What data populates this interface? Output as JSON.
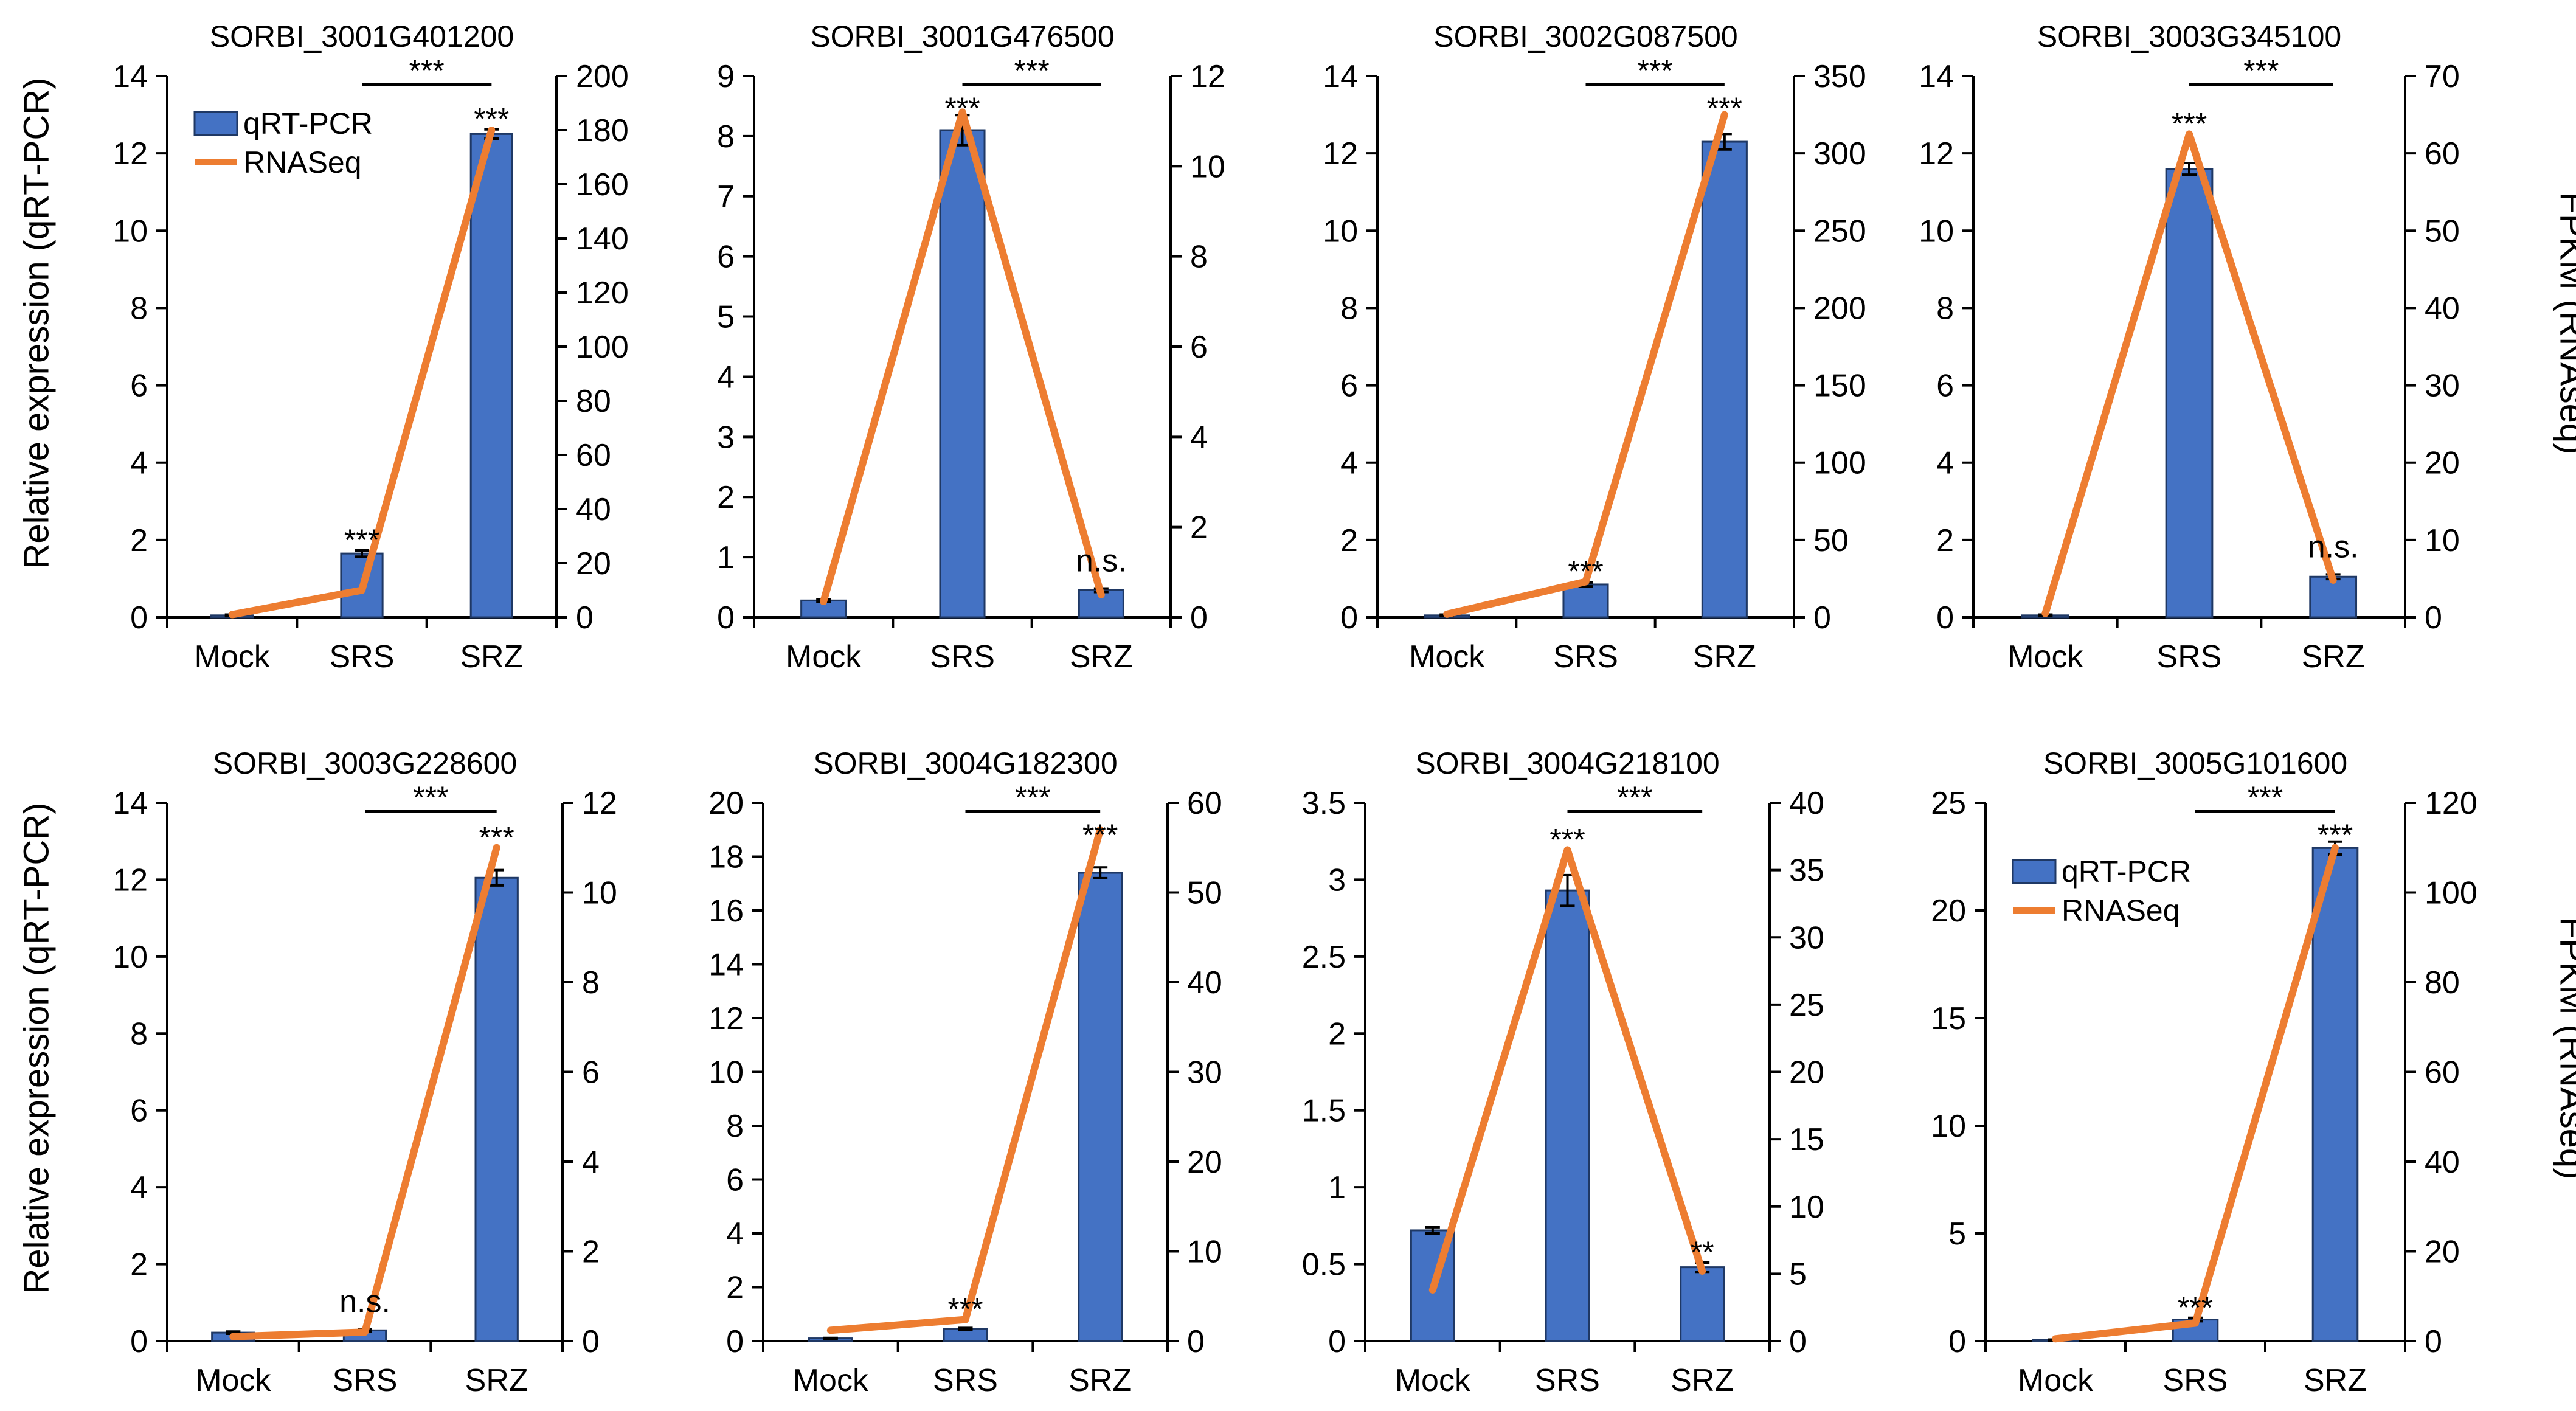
{
  "figure": {
    "left_axis_title": "Relative expression (qRT-PCR)",
    "right_axis_title": "FPKM (RNAseq)",
    "colors": {
      "bar": "#4472C4",
      "bar_edge": "#1F3864",
      "line": "#ED7D31",
      "axis": "#000000"
    }
  },
  "chart_data": [
    {
      "type": "bar+line",
      "title": "SORBI_3001G401200",
      "categories": [
        "Mock",
        "SRS",
        "SRZ"
      ],
      "bar_series": {
        "name": "qRT-PCR",
        "values": [
          0.05,
          1.65,
          12.5
        ],
        "errors": [
          0.02,
          0.08,
          0.12
        ]
      },
      "line_series": {
        "name": "RNASeq",
        "values": [
          1,
          10,
          180
        ]
      },
      "y_left": {
        "min": 0,
        "max": 14,
        "ticks": [
          "0",
          "2",
          "4",
          "6",
          "8",
          "10",
          "12",
          "14"
        ]
      },
      "y_right": {
        "min": 0,
        "max": 200,
        "ticks": [
          "0",
          "20",
          "40",
          "60",
          "80",
          "100",
          "120",
          "140",
          "160",
          "180",
          "200"
        ]
      },
      "bar_annotations": [
        "",
        "***",
        "***"
      ],
      "comparison": {
        "label": "***",
        "from": 1,
        "to": 2
      },
      "legend": {
        "position": "top-left",
        "entries": [
          "qRT-PCR",
          "RNASeq"
        ]
      }
    },
    {
      "type": "bar+line",
      "title": "SORBI_3001G476500",
      "categories": [
        "Mock",
        "SRS",
        "SRZ"
      ],
      "bar_series": {
        "name": "qRT-PCR",
        "values": [
          0.28,
          8.1,
          0.45
        ],
        "errors": [
          0.02,
          0.25,
          0.03
        ]
      },
      "line_series": {
        "name": "RNASeq",
        "values": [
          0.35,
          11.2,
          0.5
        ]
      },
      "y_left": {
        "min": 0,
        "max": 9,
        "ticks": [
          "0",
          "1",
          "2",
          "3",
          "4",
          "5",
          "6",
          "7",
          "8",
          "9"
        ]
      },
      "y_right": {
        "min": 0,
        "max": 12,
        "ticks": [
          "0",
          "2",
          "4",
          "6",
          "8",
          "10",
          "12"
        ]
      },
      "bar_annotations": [
        "",
        "***",
        "n.s."
      ],
      "comparison": {
        "label": "***",
        "from": 1,
        "to": 2
      }
    },
    {
      "type": "bar+line",
      "title": "SORBI_3002G087500",
      "categories": [
        "Mock",
        "SRS",
        "SRZ"
      ],
      "bar_series": {
        "name": "qRT-PCR",
        "values": [
          0.05,
          0.85,
          12.3
        ],
        "errors": [
          0.02,
          0.05,
          0.2
        ]
      },
      "line_series": {
        "name": "RNASeq",
        "values": [
          2,
          23,
          325
        ]
      },
      "y_left": {
        "min": 0,
        "max": 14,
        "ticks": [
          "0",
          "2",
          "4",
          "6",
          "8",
          "10",
          "12",
          "14"
        ]
      },
      "y_right": {
        "min": 0,
        "max": 350,
        "ticks": [
          "0",
          "50",
          "100",
          "150",
          "200",
          "250",
          "300",
          "350"
        ]
      },
      "bar_annotations": [
        "",
        "***",
        "***"
      ],
      "comparison": {
        "label": "***",
        "from": 1,
        "to": 2
      }
    },
    {
      "type": "bar+line",
      "title": "SORBI_3003G345100",
      "categories": [
        "Mock",
        "SRS",
        "SRZ"
      ],
      "bar_series": {
        "name": "qRT-PCR",
        "values": [
          0.05,
          11.6,
          1.05
        ],
        "errors": [
          0.02,
          0.15,
          0.06
        ]
      },
      "line_series": {
        "name": "RNASeq",
        "values": [
          0.5,
          62.5,
          4.8
        ]
      },
      "y_left": {
        "min": 0,
        "max": 14,
        "ticks": [
          "0",
          "2",
          "4",
          "6",
          "8",
          "10",
          "12",
          "14"
        ]
      },
      "y_right": {
        "min": 0,
        "max": 70,
        "ticks": [
          "0",
          "10",
          "20",
          "30",
          "40",
          "50",
          "60",
          "70"
        ]
      },
      "bar_annotations": [
        "",
        "***",
        "n.s."
      ],
      "comparison": {
        "label": "***",
        "from": 1,
        "to": 2
      }
    },
    {
      "type": "bar+line",
      "title": "SORBI_3003G228600",
      "categories": [
        "Mock",
        "SRS",
        "SRZ"
      ],
      "bar_series": {
        "name": "qRT-PCR",
        "values": [
          0.22,
          0.28,
          12.05
        ],
        "errors": [
          0.03,
          0.03,
          0.2
        ]
      },
      "line_series": {
        "name": "RNASeq",
        "values": [
          0.1,
          0.2,
          11
        ]
      },
      "y_left": {
        "min": 0,
        "max": 14,
        "ticks": [
          "0",
          "2",
          "4",
          "6",
          "8",
          "10",
          "12",
          "14"
        ]
      },
      "y_right": {
        "min": 0,
        "max": 12,
        "ticks": [
          "0",
          "2",
          "4",
          "6",
          "8",
          "10",
          "12"
        ]
      },
      "bar_annotations": [
        "",
        "n.s.",
        "***"
      ],
      "comparison": {
        "label": "***",
        "from": 1,
        "to": 2
      }
    },
    {
      "type": "bar+line",
      "title": "SORBI_3004G182300",
      "categories": [
        "Mock",
        "SRS",
        "SRZ"
      ],
      "bar_series": {
        "name": "qRT-PCR",
        "values": [
          0.1,
          0.45,
          17.4
        ],
        "errors": [
          0.02,
          0.04,
          0.2
        ]
      },
      "line_series": {
        "name": "RNASeq",
        "values": [
          1.2,
          2.4,
          57
        ]
      },
      "y_left": {
        "min": 0,
        "max": 20,
        "ticks": [
          "0",
          "2",
          "4",
          "6",
          "8",
          "10",
          "12",
          "14",
          "16",
          "18",
          "20"
        ]
      },
      "y_right": {
        "min": 0,
        "max": 60,
        "ticks": [
          "0",
          "10",
          "20",
          "30",
          "40",
          "50",
          "60"
        ]
      },
      "bar_annotations": [
        "",
        "***",
        "***"
      ],
      "comparison": {
        "label": "***",
        "from": 1,
        "to": 2
      }
    },
    {
      "type": "bar+line",
      "title": "SORBI_3004G218100",
      "categories": [
        "Mock",
        "SRS",
        "SRZ"
      ],
      "bar_series": {
        "name": "qRT-PCR",
        "values": [
          0.72,
          2.93,
          0.48
        ],
        "errors": [
          0.02,
          0.1,
          0.03
        ]
      },
      "line_series": {
        "name": "RNASeq",
        "values": [
          3.8,
          36.5,
          5.2
        ]
      },
      "y_left": {
        "min": 0,
        "max": 3.5,
        "ticks": [
          "0",
          "0.5",
          "1",
          "1.5",
          "2",
          "2.5",
          "3",
          "3.5"
        ]
      },
      "y_right": {
        "min": 0,
        "max": 40,
        "ticks": [
          "0",
          "5",
          "10",
          "15",
          "20",
          "25",
          "30",
          "35",
          "40"
        ]
      },
      "bar_annotations": [
        "",
        "***",
        "**"
      ],
      "comparison": {
        "label": "***",
        "from": 1,
        "to": 2
      }
    },
    {
      "type": "bar+line",
      "title": "SORBI_3005G101600",
      "categories": [
        "Mock",
        "SRS",
        "SRZ"
      ],
      "bar_series": {
        "name": "qRT-PCR",
        "values": [
          0.05,
          1.0,
          22.9
        ],
        "errors": [
          0.02,
          0.08,
          0.3
        ]
      },
      "line_series": {
        "name": "RNASeq",
        "values": [
          0.5,
          4,
          110
        ]
      },
      "y_left": {
        "min": 0,
        "max": 25,
        "ticks": [
          "0",
          "5",
          "10",
          "15",
          "20",
          "25"
        ]
      },
      "y_right": {
        "min": 0,
        "max": 120,
        "ticks": [
          "0",
          "20",
          "40",
          "60",
          "80",
          "100",
          "120"
        ]
      },
      "bar_annotations": [
        "",
        "***",
        "***"
      ],
      "comparison": {
        "label": "***",
        "from": 1,
        "to": 2
      },
      "legend": {
        "position": "top-left",
        "entries": [
          "qRT-PCR",
          "RNASeq"
        ]
      }
    }
  ]
}
